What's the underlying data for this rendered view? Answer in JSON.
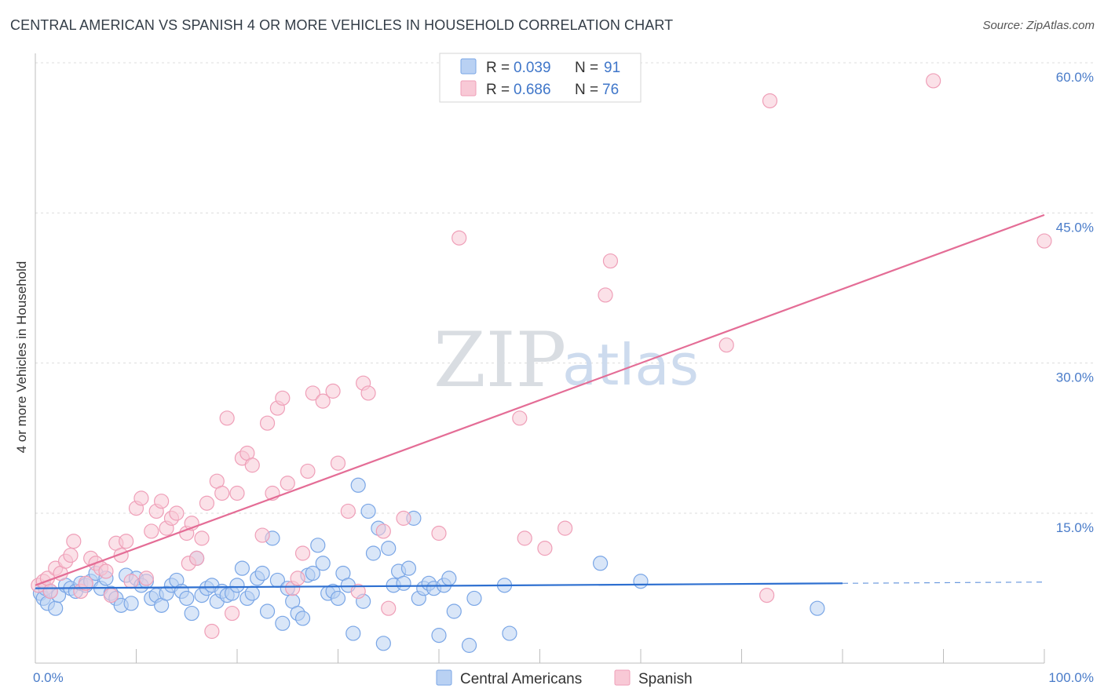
{
  "chart_data": {
    "type": "scatter",
    "title": "CENTRAL AMERICAN VS SPANISH 4 OR MORE VEHICLES IN HOUSEHOLD CORRELATION CHART",
    "source": "Source: ZipAtlas.com",
    "ylabel": "4 or more Vehicles in Household",
    "xlabel": "",
    "xlim": [
      0,
      100
    ],
    "ylim": [
      0,
      62
    ],
    "x_tick_labels": [
      "0.0%",
      "100.0%"
    ],
    "y_ticks": [
      15,
      30,
      45,
      60
    ],
    "y_tick_labels": [
      "15.0%",
      "30.0%",
      "45.0%",
      "60.0%"
    ],
    "legend": {
      "entries": [
        {
          "r_label": "R =",
          "r": "0.039",
          "n_label": "N =",
          "n": "91"
        },
        {
          "r_label": "R =",
          "r": "0.686",
          "n_label": "N =",
          "n": "76"
        }
      ]
    },
    "watermark": {
      "zip": "ZIP",
      "atlas": "atlas"
    },
    "series": [
      {
        "name": "Central Americans",
        "color": "#7aa6e6",
        "fill": "#b9d1f3",
        "trend": {
          "x0": 0,
          "y0": 7.5,
          "x1": 80,
          "y1": 8.0,
          "dash_to": 100,
          "color": "#2d6fd0"
        },
        "points": [
          [
            0.5,
            7.0
          ],
          [
            0.8,
            6.5
          ],
          [
            1.0,
            7.5
          ],
          [
            1.2,
            6.0
          ],
          [
            1.5,
            7.2
          ],
          [
            2.0,
            5.5
          ],
          [
            2.3,
            6.8
          ],
          [
            3.0,
            7.8
          ],
          [
            3.5,
            7.5
          ],
          [
            4.0,
            7.2
          ],
          [
            4.5,
            8.0
          ],
          [
            5.0,
            7.8
          ],
          [
            5.5,
            8.2
          ],
          [
            6.0,
            9.0
          ],
          [
            6.5,
            7.5
          ],
          [
            7.0,
            8.5
          ],
          [
            7.5,
            7.0
          ],
          [
            8.0,
            6.5
          ],
          [
            8.5,
            5.8
          ],
          [
            9.0,
            8.8
          ],
          [
            9.5,
            6.0
          ],
          [
            10.0,
            8.5
          ],
          [
            10.5,
            7.8
          ],
          [
            11.0,
            8.2
          ],
          [
            11.5,
            6.5
          ],
          [
            12.0,
            6.8
          ],
          [
            12.5,
            5.8
          ],
          [
            13.0,
            7.0
          ],
          [
            13.5,
            7.8
          ],
          [
            14.0,
            8.3
          ],
          [
            14.5,
            7.2
          ],
          [
            15.0,
            6.5
          ],
          [
            15.5,
            5.0
          ],
          [
            16.0,
            10.5
          ],
          [
            16.5,
            6.8
          ],
          [
            17.0,
            7.5
          ],
          [
            17.5,
            7.8
          ],
          [
            18.0,
            6.2
          ],
          [
            18.5,
            7.2
          ],
          [
            19.0,
            6.8
          ],
          [
            19.5,
            7.0
          ],
          [
            20.0,
            7.8
          ],
          [
            20.5,
            9.5
          ],
          [
            21.0,
            6.5
          ],
          [
            21.5,
            7.0
          ],
          [
            22.0,
            8.5
          ],
          [
            22.5,
            9.0
          ],
          [
            23.0,
            5.2
          ],
          [
            23.5,
            12.5
          ],
          [
            24.0,
            8.3
          ],
          [
            24.5,
            4.0
          ],
          [
            25.0,
            7.5
          ],
          [
            25.5,
            6.2
          ],
          [
            26.0,
            5.0
          ],
          [
            26.5,
            4.5
          ],
          [
            27.0,
            8.8
          ],
          [
            27.5,
            9.0
          ],
          [
            28.0,
            11.8
          ],
          [
            28.5,
            10.0
          ],
          [
            29.0,
            7.0
          ],
          [
            29.5,
            7.2
          ],
          [
            30.0,
            6.5
          ],
          [
            30.5,
            9.0
          ],
          [
            31.0,
            7.8
          ],
          [
            31.5,
            3.0
          ],
          [
            32.0,
            17.8
          ],
          [
            32.5,
            6.2
          ],
          [
            33.0,
            15.2
          ],
          [
            33.5,
            11.0
          ],
          [
            34.0,
            13.5
          ],
          [
            34.5,
            2.0
          ],
          [
            35.0,
            11.5
          ],
          [
            35.5,
            7.8
          ],
          [
            36.0,
            9.2
          ],
          [
            36.5,
            8.0
          ],
          [
            37.0,
            9.5
          ],
          [
            37.5,
            14.5
          ],
          [
            38.0,
            6.5
          ],
          [
            38.5,
            7.5
          ],
          [
            39.0,
            8.0
          ],
          [
            39.5,
            7.5
          ],
          [
            40.0,
            2.8
          ],
          [
            40.5,
            7.8
          ],
          [
            41.0,
            8.5
          ],
          [
            41.5,
            5.2
          ],
          [
            43.0,
            1.8
          ],
          [
            43.5,
            6.5
          ],
          [
            47.0,
            3.0
          ],
          [
            46.5,
            7.8
          ],
          [
            56.0,
            10.0
          ],
          [
            60.0,
            8.2
          ],
          [
            77.5,
            5.5
          ]
        ]
      },
      {
        "name": "Spanish",
        "color": "#ef9fb8",
        "fill": "#f8c9d6",
        "trend": {
          "x0": 0,
          "y0": 7.8,
          "x1": 100,
          "y1": 44.8,
          "color": "#e46d96"
        },
        "points": [
          [
            0.3,
            7.8
          ],
          [
            0.8,
            8.2
          ],
          [
            1.2,
            8.5
          ],
          [
            1.5,
            7.2
          ],
          [
            2.0,
            9.5
          ],
          [
            2.5,
            9.0
          ],
          [
            3.0,
            10.2
          ],
          [
            3.5,
            10.8
          ],
          [
            3.8,
            12.2
          ],
          [
            4.5,
            7.2
          ],
          [
            5.0,
            8.0
          ],
          [
            5.5,
            10.5
          ],
          [
            6.0,
            10.0
          ],
          [
            6.5,
            9.5
          ],
          [
            7.0,
            9.2
          ],
          [
            7.5,
            6.8
          ],
          [
            8.0,
            12.0
          ],
          [
            8.5,
            10.8
          ],
          [
            9.0,
            12.2
          ],
          [
            9.5,
            8.2
          ],
          [
            10.0,
            15.5
          ],
          [
            10.5,
            16.5
          ],
          [
            11.0,
            8.5
          ],
          [
            11.5,
            13.2
          ],
          [
            12.0,
            15.2
          ],
          [
            12.5,
            16.2
          ],
          [
            13.0,
            13.5
          ],
          [
            13.5,
            14.5
          ],
          [
            14.0,
            15.0
          ],
          [
            15.0,
            13.0
          ],
          [
            15.2,
            10.0
          ],
          [
            15.5,
            14.0
          ],
          [
            16.0,
            10.5
          ],
          [
            16.5,
            12.5
          ],
          [
            17.0,
            16.0
          ],
          [
            17.5,
            3.2
          ],
          [
            18.0,
            18.2
          ],
          [
            18.5,
            17.0
          ],
          [
            19.0,
            24.5
          ],
          [
            19.5,
            5.0
          ],
          [
            20.0,
            17.0
          ],
          [
            20.5,
            20.5
          ],
          [
            21.0,
            21.0
          ],
          [
            21.5,
            19.8
          ],
          [
            22.5,
            12.8
          ],
          [
            23.0,
            24.0
          ],
          [
            23.5,
            17.0
          ],
          [
            24.0,
            25.5
          ],
          [
            24.5,
            26.5
          ],
          [
            25.0,
            18.0
          ],
          [
            25.5,
            7.5
          ],
          [
            26.0,
            8.5
          ],
          [
            26.5,
            11.0
          ],
          [
            27.0,
            19.2
          ],
          [
            27.5,
            27.0
          ],
          [
            28.5,
            26.2
          ],
          [
            29.5,
            27.2
          ],
          [
            30.0,
            20.0
          ],
          [
            31.0,
            15.2
          ],
          [
            32.0,
            7.2
          ],
          [
            32.5,
            28.0
          ],
          [
            33.0,
            27.0
          ],
          [
            34.5,
            13.2
          ],
          [
            35.0,
            5.5
          ],
          [
            36.5,
            14.5
          ],
          [
            40.0,
            13.0
          ],
          [
            42.0,
            42.5
          ],
          [
            48.0,
            24.5
          ],
          [
            48.5,
            12.5
          ],
          [
            50.5,
            11.5
          ],
          [
            52.5,
            13.5
          ],
          [
            56.5,
            36.8
          ],
          [
            57.0,
            40.2
          ],
          [
            68.5,
            31.8
          ],
          [
            72.5,
            6.8
          ],
          [
            72.8,
            56.2
          ],
          [
            89.0,
            58.2
          ],
          [
            100.0,
            42.2
          ]
        ]
      }
    ]
  },
  "bottom_legend": [
    "Central Americans",
    "Spanish"
  ]
}
